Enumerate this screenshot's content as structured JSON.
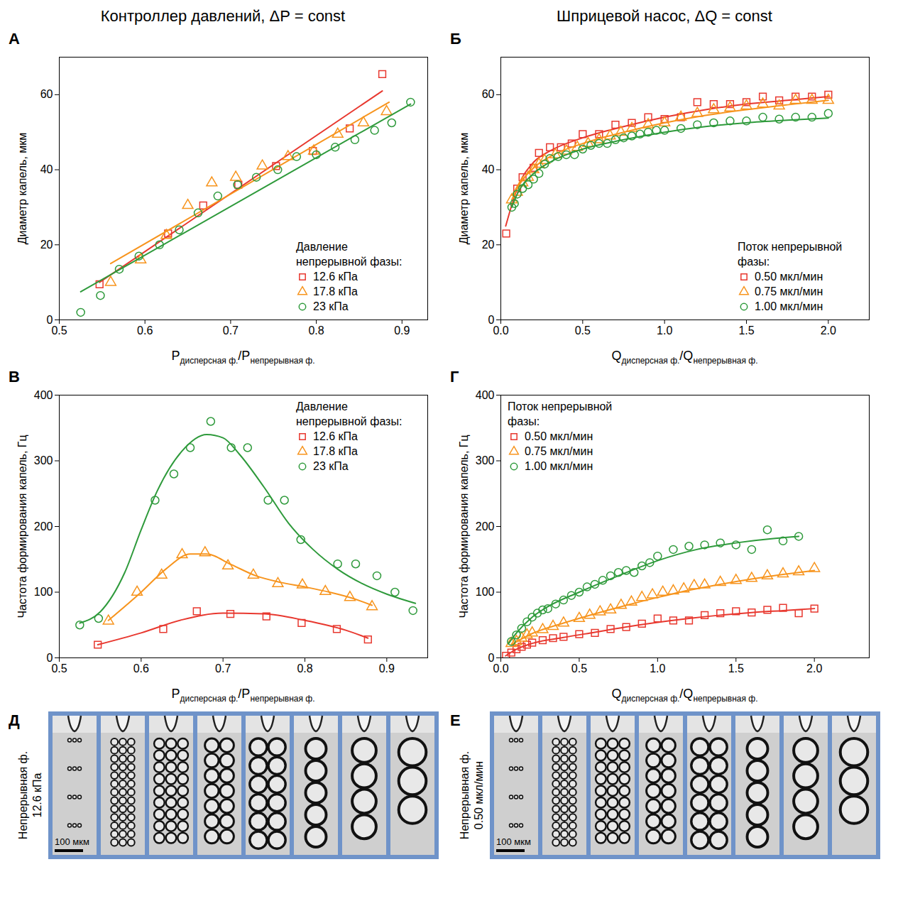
{
  "column_titles": [
    "Контроллер давлений, ΔP = const",
    "Шприцевой насос, ΔQ = const"
  ],
  "chart_data": [
    {
      "type": "scatter",
      "letter": "А",
      "ylabel": "Диаметр капель, мкм",
      "xlabel": "Pдисперсная ф./Pнепрерывная ф.",
      "xlim": [
        0.5,
        0.93
      ],
      "xticks": [
        0.5,
        0.6,
        0.7,
        0.8,
        0.9
      ],
      "ylim": [
        0,
        70
      ],
      "yticks": [
        0,
        20,
        40,
        60
      ],
      "legend": "lower right",
      "legend_title": "Давление непрерывной фазы:",
      "series": [
        {
          "name": "12.6 кПа",
          "color": "#e8382f",
          "marker": "square",
          "x": [
            0.547,
            0.627,
            0.668,
            0.709,
            0.753,
            0.796,
            0.839,
            0.877
          ],
          "values": [
            9.5,
            23,
            30.5,
            36,
            41,
            45,
            51,
            65.5
          ],
          "fit_x": [
            0.547,
            0.877
          ],
          "fit_values": [
            10,
            61
          ]
        },
        {
          "name": "17.8 кПа",
          "color": "#f7941d",
          "marker": "triangle",
          "x": [
            0.56,
            0.595,
            0.625,
            0.65,
            0.678,
            0.706,
            0.737,
            0.767,
            0.797,
            0.825,
            0.855,
            0.882
          ],
          "values": [
            10,
            16,
            22.5,
            30.5,
            36.5,
            38,
            41,
            43.5,
            45,
            49.5,
            52.5,
            55.5
          ],
          "fit_x": [
            0.56,
            0.885
          ],
          "fit_values": [
            15,
            58
          ]
        },
        {
          "name": "23 кПа",
          "color": "#2e9a3b",
          "marker": "circle",
          "x": [
            0.525,
            0.548,
            0.57,
            0.593,
            0.617,
            0.64,
            0.662,
            0.685,
            0.708,
            0.73,
            0.755,
            0.777,
            0.8,
            0.822,
            0.845,
            0.868,
            0.888,
            0.91
          ],
          "values": [
            2,
            6.5,
            13.5,
            17,
            20,
            24,
            28.5,
            33,
            36,
            38,
            40,
            43.5,
            44,
            46,
            48,
            50.5,
            52.5,
            58
          ],
          "fit_x": [
            0.525,
            0.91
          ],
          "fit_values": [
            7.5,
            57.5
          ]
        }
      ]
    },
    {
      "type": "scatter",
      "letter": "Б",
      "ylabel": "Диаметр капель, мкм",
      "xlabel": "Qдисперсная ф./Qнепрерывная ф.",
      "xlim": [
        0,
        2.25
      ],
      "xticks": [
        {
          "value": 0,
          "label": "0.0"
        },
        0.5,
        {
          "value": 1,
          "label": "1.0"
        },
        1.5,
        {
          "value": 2,
          "label": "2.0"
        }
      ],
      "ylim": [
        0,
        70
      ],
      "yticks": [
        0,
        20,
        40,
        60
      ],
      "legend": "lower right",
      "legend_title": "Поток непрерывной фазы:",
      "series": [
        {
          "name": "0.50 мкл/мин",
          "color": "#e8382f",
          "marker": "square",
          "x": [
            0.033,
            0.1,
            0.133,
            0.2,
            0.233,
            0.3,
            0.367,
            0.433,
            0.5,
            0.6,
            0.7,
            0.8,
            0.9,
            1.0,
            1.1,
            1.2,
            1.3,
            1.4,
            1.5,
            1.6,
            1.7,
            1.8,
            1.9,
            2.0
          ],
          "values": [
            23,
            35,
            38,
            40.5,
            44.5,
            46,
            46,
            47,
            49.5,
            49.5,
            52,
            52.5,
            54,
            53.5,
            54,
            58,
            57.5,
            57.5,
            58,
            59.5,
            58.5,
            59.5,
            59.5,
            60
          ],
          "fit_x": [
            0.03,
            0.1,
            0.2,
            0.3,
            0.5,
            0.75,
            1.0,
            1.25,
            1.5,
            1.75,
            2.0
          ],
          "fit_values": [
            25,
            35,
            42,
            45,
            48.5,
            51.5,
            54,
            56,
            57.5,
            58.5,
            59.5
          ]
        },
        {
          "name": "0.75 мкл/мин",
          "color": "#f7941d",
          "marker": "triangle",
          "x": [
            0.067,
            0.1,
            0.133,
            0.167,
            0.2,
            0.233,
            0.267,
            0.333,
            0.4,
            0.467,
            0.533,
            0.6,
            0.667,
            0.733,
            0.8,
            0.9,
            1.0,
            1.1,
            1.2,
            1.3,
            1.4,
            1.5,
            1.6,
            1.7,
            1.8,
            1.9,
            2.0
          ],
          "values": [
            32,
            34,
            36.5,
            38,
            40,
            41.5,
            42.5,
            44,
            45,
            46,
            47,
            48,
            49,
            50,
            51,
            52,
            52.5,
            54,
            55,
            56,
            56.5,
            57,
            57.5,
            57,
            58.5,
            58.5,
            58.5
          ],
          "fit_x": [
            0.067,
            0.1,
            0.2,
            0.3,
            0.5,
            0.75,
            1.0,
            1.25,
            1.5,
            1.75,
            2.0
          ],
          "fit_values": [
            32,
            35,
            40.5,
            43.5,
            47,
            50,
            52.5,
            54.5,
            56,
            57.3,
            58.5
          ]
        },
        {
          "name": "1.00 мкл/мин",
          "color": "#2e9a3b",
          "marker": "circle",
          "x": [
            0.067,
            0.083,
            0.1,
            0.133,
            0.167,
            0.2,
            0.233,
            0.267,
            0.3,
            0.35,
            0.4,
            0.45,
            0.5,
            0.55,
            0.6,
            0.65,
            0.7,
            0.75,
            0.8,
            0.85,
            0.9,
            0.95,
            1.0,
            1.1,
            1.2,
            1.3,
            1.4,
            1.5,
            1.6,
            1.7,
            1.8,
            1.9,
            2.0
          ],
          "values": [
            30,
            31,
            33.5,
            35,
            36,
            37.5,
            39,
            41.5,
            43,
            43.5,
            44,
            44,
            45.5,
            46.5,
            47,
            47,
            48,
            48.5,
            49,
            49.5,
            50,
            50.5,
            50.5,
            51,
            52,
            52.5,
            53,
            53,
            54,
            53.5,
            54,
            54,
            55
          ],
          "fit_x": [
            0.067,
            0.1,
            0.2,
            0.3,
            0.5,
            0.75,
            1.0,
            1.25,
            1.5,
            1.75,
            2.0
          ],
          "fit_values": [
            30,
            33.5,
            39,
            42,
            45.5,
            48,
            50,
            51.5,
            52.5,
            53.2,
            53.8
          ]
        }
      ]
    },
    {
      "type": "scatter",
      "letter": "В",
      "ylabel": "Частота формирования капель, Гц",
      "xlabel": "Pдисперсная ф./Pнепрерывная ф.",
      "xlim": [
        0.5,
        0.95
      ],
      "xticks": [
        0.5,
        0.6,
        0.7,
        0.8,
        0.9
      ],
      "ylim": [
        0,
        400
      ],
      "yticks": [
        0,
        100,
        200,
        300,
        400
      ],
      "legend": "upper right",
      "legend_title": "Давление непрерывной фазы:",
      "series": [
        {
          "name": "12.6 кПа",
          "color": "#e8382f",
          "marker": "square",
          "x": [
            0.547,
            0.627,
            0.668,
            0.709,
            0.753,
            0.796,
            0.839,
            0.877
          ],
          "values": [
            20,
            44,
            71,
            67,
            63,
            53,
            44,
            28
          ],
          "fit_x": [
            0.547,
            0.6,
            0.65,
            0.7,
            0.75,
            0.8,
            0.85,
            0.877
          ],
          "fit_values": [
            20,
            38,
            58,
            68,
            67,
            57,
            42,
            30
          ]
        },
        {
          "name": "17.8 кПа",
          "color": "#f7941d",
          "marker": "triangle",
          "x": [
            0.56,
            0.595,
            0.625,
            0.65,
            0.678,
            0.706,
            0.737,
            0.767,
            0.797,
            0.825,
            0.855,
            0.882
          ],
          "values": [
            56,
            100,
            126,
            157,
            160,
            140,
            126,
            113,
            111,
            101,
            92,
            78
          ],
          "fit_x": [
            0.56,
            0.6,
            0.63,
            0.66,
            0.68,
            0.71,
            0.74,
            0.77,
            0.8,
            0.83,
            0.86,
            0.882
          ],
          "fit_values": [
            57,
            100,
            135,
            158,
            158,
            142,
            125,
            115,
            108,
            100,
            90,
            80
          ]
        },
        {
          "name": "23 кПа",
          "color": "#2e9a3b",
          "marker": "circle",
          "x": [
            0.525,
            0.548,
            0.617,
            0.64,
            0.66,
            0.685,
            0.71,
            0.73,
            0.755,
            0.775,
            0.795,
            0.84,
            0.862,
            0.888,
            0.91,
            0.932
          ],
          "values": [
            50,
            60,
            240,
            280,
            320,
            360,
            320,
            320,
            240,
            240,
            180,
            143,
            143,
            125,
            100,
            72
          ],
          "fit_x": [
            0.525,
            0.55,
            0.58,
            0.6,
            0.62,
            0.65,
            0.68,
            0.7,
            0.72,
            0.75,
            0.78,
            0.81,
            0.84,
            0.87,
            0.9,
            0.935
          ],
          "fit_values": [
            53,
            70,
            130,
            195,
            255,
            315,
            340,
            335,
            310,
            260,
            205,
            165,
            135,
            113,
            97,
            83
          ]
        }
      ]
    },
    {
      "type": "scatter",
      "letter": "Г",
      "ylabel": "Частота формирования капель, Гц",
      "xlabel": "Qдисперсная ф./Qнепрерывная ф.",
      "xlim": [
        0,
        2.35
      ],
      "xticks": [
        {
          "value": 0,
          "label": "0.0"
        },
        0.5,
        {
          "value": 1,
          "label": "1.0"
        },
        1.5,
        {
          "value": 2,
          "label": "2.0"
        }
      ],
      "ylim": [
        0,
        400
      ],
      "yticks": [
        0,
        100,
        200,
        300,
        400
      ],
      "legend": "upper left",
      "legend_title": "Поток непрерывной фазы:",
      "series": [
        {
          "name": "0.50 мкл/мин",
          "color": "#e8382f",
          "marker": "square",
          "x": [
            0.033,
            0.067,
            0.1,
            0.133,
            0.167,
            0.2,
            0.267,
            0.333,
            0.4,
            0.5,
            0.6,
            0.7,
            0.8,
            0.9,
            1.0,
            1.1,
            1.2,
            1.3,
            1.4,
            1.5,
            1.6,
            1.7,
            1.8,
            1.9,
            2.0
          ],
          "values": [
            3,
            8,
            13,
            17,
            20,
            23,
            27,
            30,
            32,
            36,
            38,
            44,
            47,
            52,
            60,
            57,
            57,
            65,
            68,
            71,
            69,
            73,
            76,
            68,
            75
          ],
          "fit_x": [
            0.03,
            0.1,
            0.2,
            0.4,
            0.6,
            0.8,
            1.0,
            1.2,
            1.4,
            1.6,
            1.8,
            2.0
          ],
          "fit_values": [
            3,
            13,
            22,
            31,
            39,
            47,
            54,
            60,
            65,
            69,
            72,
            75
          ]
        },
        {
          "name": "0.75 мкл/мин",
          "color": "#f7941d",
          "marker": "triangle",
          "x": [
            0.067,
            0.1,
            0.133,
            0.167,
            0.2,
            0.267,
            0.333,
            0.4,
            0.5,
            0.567,
            0.633,
            0.7,
            0.767,
            0.833,
            0.9,
            0.967,
            1.033,
            1.1,
            1.167,
            1.233,
            1.3,
            1.4,
            1.5,
            1.6,
            1.7,
            1.8,
            1.9,
            2.0
          ],
          "values": [
            22,
            25,
            30,
            35,
            38,
            43,
            48,
            53,
            60,
            65,
            70,
            73,
            80,
            85,
            92,
            96,
            100,
            102,
            105,
            110,
            111,
            115,
            118,
            121,
            125,
            128,
            131,
            136
          ],
          "fit_x": [
            0.067,
            0.2,
            0.4,
            0.6,
            0.8,
            1.0,
            1.2,
            1.4,
            1.6,
            1.8,
            2.0
          ],
          "fit_values": [
            20,
            37,
            53,
            67,
            80,
            92,
            103,
            112,
            120,
            127,
            133
          ]
        },
        {
          "name": "1.00 мкл/мин",
          "color": "#2e9a3b",
          "marker": "circle",
          "x": [
            0.067,
            0.1,
            0.133,
            0.167,
            0.2,
            0.233,
            0.267,
            0.3,
            0.35,
            0.4,
            0.45,
            0.5,
            0.55,
            0.6,
            0.65,
            0.7,
            0.75,
            0.8,
            0.85,
            0.9,
            0.95,
            1.0,
            1.1,
            1.2,
            1.3,
            1.4,
            1.5,
            1.6,
            1.7,
            1.8,
            1.9
          ],
          "values": [
            25,
            35,
            45,
            55,
            62,
            68,
            73,
            75,
            82,
            88,
            95,
            100,
            108,
            112,
            118,
            125,
            130,
            133,
            130,
            140,
            145,
            155,
            165,
            170,
            172,
            175,
            172,
            165,
            195,
            178,
            185
          ],
          "fit_x": [
            0.05,
            0.1,
            0.2,
            0.3,
            0.5,
            0.75,
            1.0,
            1.25,
            1.5,
            1.75,
            1.9
          ],
          "fit_values": [
            22,
            38,
            62,
            78,
            100,
            125,
            148,
            165,
            175,
            182,
            185
          ]
        }
      ]
    }
  ],
  "image_panels": [
    {
      "letter": "Д",
      "side_label": [
        "Непрерывная ф.",
        "12.6 кПа"
      ],
      "scale_bar": "100 мкм"
    },
    {
      "letter": "Е",
      "side_label": [
        "Непрерывная ф.",
        "0.50 мкл/мин"
      ],
      "scale_bar": "100 мкм"
    }
  ]
}
